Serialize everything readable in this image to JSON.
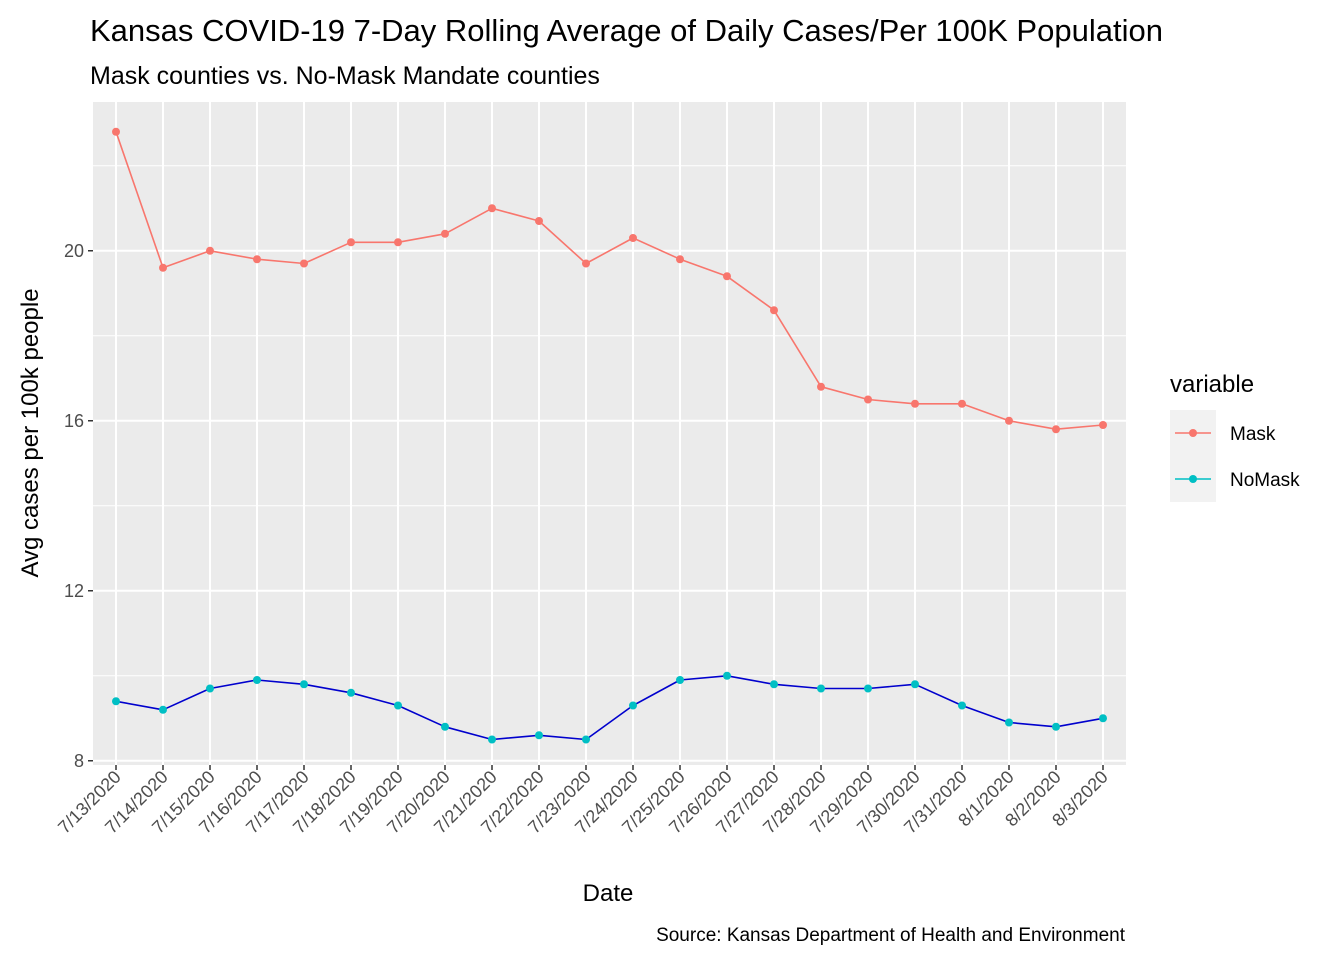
{
  "chart_data": {
    "type": "line",
    "title": "Kansas COVID-19 7-Day Rolling Average of Daily Cases/Per 100K Population",
    "subtitle": "Mask counties vs. No-Mask Mandate counties",
    "xlabel": "Date",
    "ylabel": "Avg cases per 100k people",
    "caption": "Source: Kansas Department of Health and Environment",
    "categories": [
      "7/13/2020",
      "7/14/2020",
      "7/15/2020",
      "7/16/2020",
      "7/17/2020",
      "7/18/2020",
      "7/19/2020",
      "7/20/2020",
      "7/21/2020",
      "7/22/2020",
      "7/23/2020",
      "7/24/2020",
      "7/25/2020",
      "7/26/2020",
      "7/27/2020",
      "7/28/2020",
      "7/29/2020",
      "7/30/2020",
      "7/31/2020",
      "8/1/2020",
      "8/2/2020",
      "8/3/2020"
    ],
    "ylim": [
      7.9,
      23.5
    ],
    "yticks": [
      8,
      12,
      16,
      20
    ],
    "grid": true,
    "panel_background": "#ebebeb",
    "legend": {
      "title": "variable",
      "position": "right"
    },
    "series": [
      {
        "name": "Mask",
        "color": "#f8766d",
        "line_color": "#f8766d",
        "values": [
          22.8,
          19.6,
          20.0,
          19.8,
          19.7,
          20.2,
          20.2,
          20.4,
          21.0,
          20.7,
          19.7,
          20.3,
          19.8,
          19.4,
          18.6,
          16.8,
          16.5,
          16.4,
          16.4,
          16.0,
          15.8,
          15.9
        ]
      },
      {
        "name": "NoMask",
        "color": "#00bfc4",
        "line_color": "#0000cd",
        "values": [
          9.4,
          9.2,
          9.7,
          9.9,
          9.8,
          9.6,
          9.3,
          8.8,
          8.5,
          8.6,
          8.5,
          9.3,
          9.9,
          10.0,
          9.8,
          9.7,
          9.7,
          9.8,
          9.3,
          8.9,
          8.8,
          9.0
        ]
      }
    ]
  }
}
